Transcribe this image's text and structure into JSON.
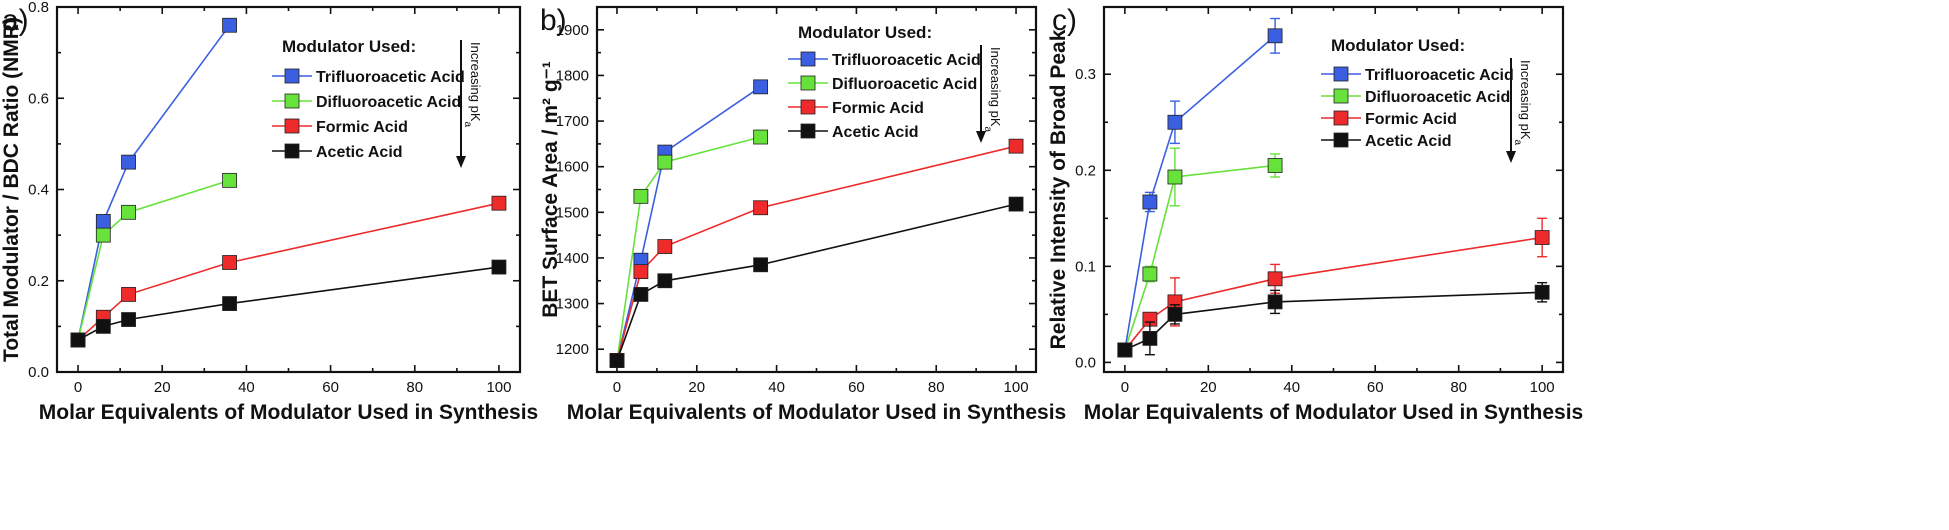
{
  "chart_data": [
    {
      "type": "line",
      "panel_label": "a)",
      "xlabel": "Molar Equivalents of Modulator Used in Synthesis",
      "ylabel": "Total Modulator / BDC Ratio (NMR)",
      "xlim": [
        -5,
        105
      ],
      "ylim": [
        0.0,
        0.8
      ],
      "xticks": [
        0,
        20,
        40,
        60,
        80,
        100
      ],
      "yticks": [
        0.0,
        0.2,
        0.4,
        0.6,
        0.8
      ],
      "ytick_labels": [
        "0.0",
        "0.2",
        "0.4",
        "0.6",
        "0.8"
      ],
      "legend_title": "Modulator Used:",
      "arrow_text": "Increasing pKa",
      "series": [
        {
          "name": "Trifluoroacetic Acid",
          "color": "#3a5fe0",
          "x": [
            0,
            6,
            12,
            36
          ],
          "y": [
            0.07,
            0.33,
            0.46,
            0.76
          ]
        },
        {
          "name": "Difluoroacetic Acid",
          "color": "#66e23a",
          "x": [
            0,
            6,
            12,
            36
          ],
          "y": [
            0.07,
            0.3,
            0.35,
            0.42
          ]
        },
        {
          "name": "Formic Acid",
          "color": "#ee2a2a",
          "x": [
            0,
            6,
            12,
            36,
            100
          ],
          "y": [
            0.07,
            0.12,
            0.17,
            0.24,
            0.37
          ]
        },
        {
          "name": "Acetic Acid",
          "color": "#111111",
          "x": [
            0,
            6,
            12,
            36,
            100
          ],
          "y": [
            0.07,
            0.1,
            0.115,
            0.15,
            0.23
          ]
        }
      ]
    },
    {
      "type": "line",
      "panel_label": "b)",
      "xlabel": "Molar Equivalents of Modulator Used in Synthesis",
      "ylabel": "BET Surface Area / m² g⁻¹",
      "xlim": [
        -5,
        105
      ],
      "ylim": [
        1150,
        1950
      ],
      "xticks": [
        0,
        20,
        40,
        60,
        80,
        100
      ],
      "yticks": [
        1200,
        1300,
        1400,
        1500,
        1600,
        1700,
        1800,
        1900
      ],
      "ytick_labels": [
        "1200",
        "1300",
        "1400",
        "1500",
        "1600",
        "1700",
        "1800",
        "1900"
      ],
      "legend_title": "Modulator Used:",
      "arrow_text": "Increasing pKa",
      "series": [
        {
          "name": "Trifluoroacetic Acid",
          "color": "#3a5fe0",
          "x": [
            0,
            6,
            12,
            36
          ],
          "y": [
            1175,
            1395,
            1632,
            1775
          ]
        },
        {
          "name": "Difluoroacetic Acid",
          "color": "#66e23a",
          "x": [
            0,
            6,
            12,
            36
          ],
          "y": [
            1175,
            1535,
            1610,
            1665
          ]
        },
        {
          "name": "Formic Acid",
          "color": "#ee2a2a",
          "x": [
            0,
            6,
            12,
            36,
            100
          ],
          "y": [
            1175,
            1370,
            1425,
            1510,
            1645
          ]
        },
        {
          "name": "Acetic Acid",
          "color": "#111111",
          "x": [
            0,
            6,
            12,
            36,
            100
          ],
          "y": [
            1175,
            1320,
            1350,
            1385,
            1518
          ]
        }
      ]
    },
    {
      "type": "line",
      "panel_label": "c)",
      "xlabel": "Molar Equivalents of Modulator Used in Synthesis",
      "ylabel": "Relative Intensity of Broad Peak",
      "xlim": [
        -5,
        105
      ],
      "ylim": [
        -0.01,
        0.37
      ],
      "xticks": [
        0,
        20,
        40,
        60,
        80,
        100
      ],
      "yticks": [
        0.0,
        0.1,
        0.2,
        0.3
      ],
      "ytick_labels": [
        "0.0",
        "0.1",
        "0.2",
        "0.3"
      ],
      "legend_title": "Modulator Used:",
      "arrow_text": "Increasing pKa",
      "series": [
        {
          "name": "Trifluoroacetic Acid",
          "color": "#3a5fe0",
          "x": [
            0,
            6,
            12,
            36
          ],
          "y": [
            0.013,
            0.167,
            0.25,
            0.34
          ],
          "err": [
            0.003,
            0.01,
            0.022,
            0.018
          ]
        },
        {
          "name": "Difluoroacetic Acid",
          "color": "#66e23a",
          "x": [
            0,
            6,
            12,
            36
          ],
          "y": [
            0.013,
            0.092,
            0.193,
            0.205
          ],
          "err": [
            0.003,
            0.008,
            0.03,
            0.012
          ]
        },
        {
          "name": "Formic Acid",
          "color": "#ee2a2a",
          "x": [
            0,
            6,
            12,
            36,
            100
          ],
          "y": [
            0.013,
            0.045,
            0.063,
            0.087,
            0.13
          ],
          "err": [
            0.003,
            0.006,
            0.025,
            0.015,
            0.02
          ]
        },
        {
          "name": "Acetic Acid",
          "color": "#111111",
          "x": [
            0,
            6,
            12,
            36,
            100
          ],
          "y": [
            0.013,
            0.025,
            0.05,
            0.063,
            0.073
          ],
          "err": [
            0.003,
            0.017,
            0.01,
            0.012,
            0.01
          ]
        }
      ]
    }
  ]
}
